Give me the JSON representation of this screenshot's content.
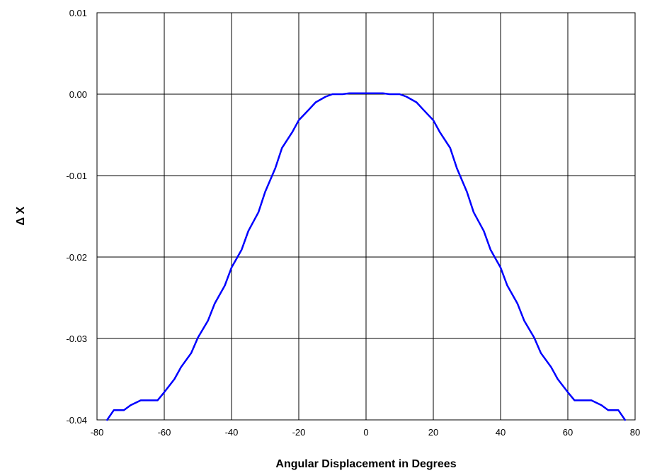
{
  "chart_data": {
    "type": "line",
    "title": "",
    "xlabel": "Angular Displacement in Degrees",
    "ylabel": "Δ X",
    "xlim": [
      -80,
      80
    ],
    "ylim": [
      -0.04,
      0.01
    ],
    "x_ticks": [
      -80,
      -60,
      -40,
      -20,
      0,
      20,
      40,
      60,
      80
    ],
    "x_tick_labels": [
      "-80",
      "-60",
      "-40",
      "-20",
      "0",
      "20",
      "40",
      "60",
      "80"
    ],
    "y_ticks": [
      0.01,
      0.0,
      -0.01,
      -0.02,
      -0.03,
      -0.04
    ],
    "y_tick_labels": [
      "0.01",
      "0.00",
      "-0.01",
      "-0.02",
      "-0.03",
      "-0.04"
    ],
    "grid": true,
    "legend": "none",
    "line_color": "#0000ff",
    "series": [
      {
        "x": [
          -77,
          -75,
          -72,
          -70,
          -67,
          -65,
          -62,
          -60,
          -57,
          -55,
          -52,
          -50,
          -47,
          -45,
          -42,
          -40,
          -37,
          -35,
          -32,
          -30,
          -27,
          -25,
          -22,
          -20,
          -17,
          -15,
          -12,
          -10,
          -7,
          -5,
          -2,
          0,
          2,
          5,
          7,
          10,
          12,
          15,
          17,
          20,
          22,
          25,
          27,
          30,
          32,
          35,
          37,
          40,
          42,
          45,
          47,
          50,
          52,
          55,
          57,
          60,
          62,
          65,
          67,
          70,
          72,
          75,
          77
        ],
        "y": [
          -0.04,
          -0.0388,
          -0.0388,
          -0.0382,
          -0.0376,
          -0.0376,
          -0.0376,
          -0.0366,
          -0.035,
          -0.0335,
          -0.0318,
          -0.0299,
          -0.0278,
          -0.0257,
          -0.0235,
          -0.0213,
          -0.0191,
          -0.0168,
          -0.0145,
          -0.012,
          -0.0091,
          -0.0066,
          -0.0047,
          -0.0032,
          -0.0019,
          -0.001,
          -0.0003,
          0.0,
          0.0,
          0.0001,
          0.0001,
          0.0001,
          0.0001,
          0.0001,
          0.0,
          0.0,
          -0.0003,
          -0.001,
          -0.0019,
          -0.0032,
          -0.0047,
          -0.0066,
          -0.0091,
          -0.012,
          -0.0145,
          -0.0168,
          -0.0191,
          -0.0213,
          -0.0235,
          -0.0257,
          -0.0278,
          -0.0299,
          -0.0318,
          -0.0335,
          -0.035,
          -0.0366,
          -0.0376,
          -0.0376,
          -0.0376,
          -0.0382,
          -0.0388,
          -0.0388,
          -0.04
        ]
      }
    ]
  }
}
